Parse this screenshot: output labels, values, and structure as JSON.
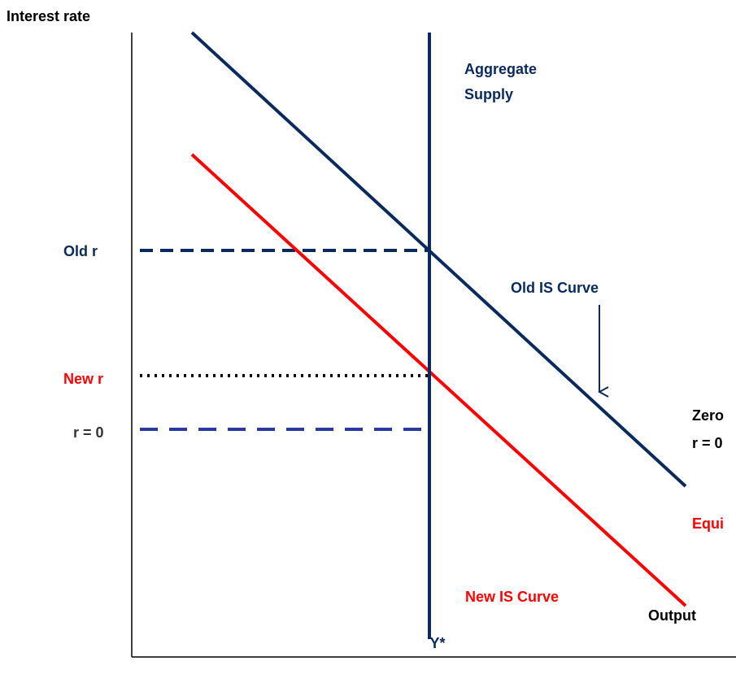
{
  "axes": {
    "y_label": "Interest rate",
    "x_label": "Output",
    "x_mark": "Y*"
  },
  "curves": {
    "aggregate_supply": "Aggregate Supply",
    "old_is": "Old IS Curve",
    "new_is": "New IS Curve"
  },
  "levels": {
    "old_r": "Old r",
    "new_r": "New r",
    "zero_r": "r = 0"
  },
  "side_notes": {
    "zero_line1": "Zero",
    "zero_line2": "r = 0",
    "equilibrium": "Equi"
  }
}
